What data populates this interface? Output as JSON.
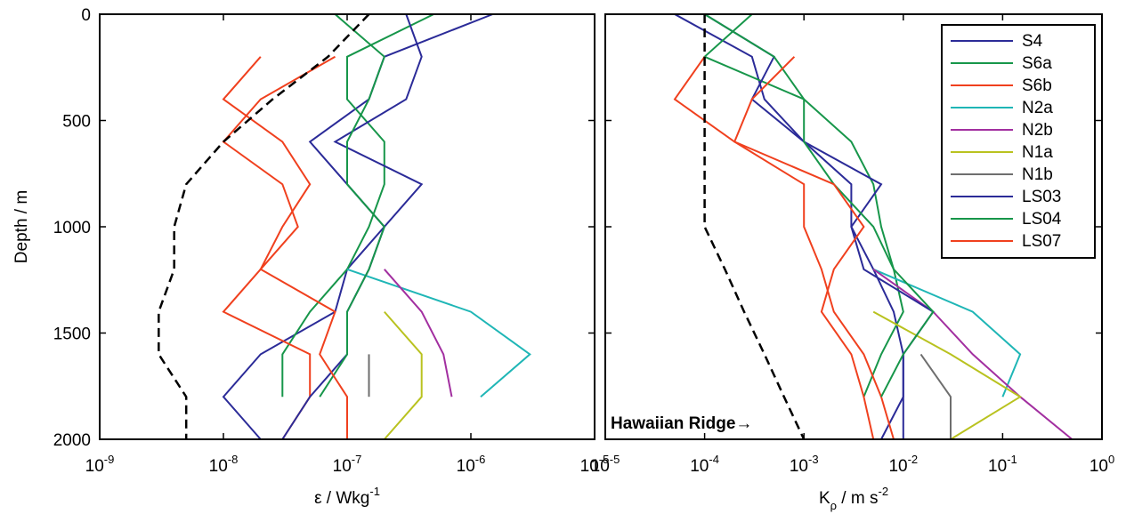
{
  "chart_data": [
    {
      "type": "line",
      "xscale": "log",
      "xlim": [
        1e-09,
        1e-05
      ],
      "ylim": [
        0,
        2000
      ],
      "y_reversed": true,
      "xticks": [
        {
          "value": 1e-09,
          "label": "10",
          "exponent": "-9"
        },
        {
          "value": 1e-08,
          "label": "10",
          "exponent": "-8"
        },
        {
          "value": 1e-07,
          "label": "10",
          "exponent": "-7"
        },
        {
          "value": 1e-06,
          "label": "10",
          "exponent": "-6"
        },
        {
          "value": 1e-05,
          "label": "10",
          "exponent": "-5"
        }
      ],
      "yticks": [
        0,
        500,
        1000,
        1500,
        2000
      ],
      "ylabel": "Depth / m",
      "xlabel": {
        "text": "ε / Wkg",
        "sup": "-1"
      },
      "y": [
        0,
        200,
        400,
        600,
        800,
        1000,
        1200,
        1400,
        1600,
        1800,
        2000
      ],
      "series": [
        {
          "color": "#2b2b98",
          "values": [
            1.5e-06,
            2e-07,
            1.5e-07,
            5e-08,
            1e-07,
            2e-07,
            1e-07,
            8e-08,
            2e-08,
            1e-08,
            2e-08
          ]
        },
        {
          "color": "#17964a",
          "values": [
            5e-07,
            1e-07,
            1e-07,
            2e-07,
            2e-07,
            1.5e-07,
            1e-07,
            5e-08,
            3e-08,
            3e-08,
            null
          ]
        },
        {
          "color": "#f0401e",
          "values": [
            null,
            2e-08,
            1e-08,
            3e-08,
            5e-08,
            3e-08,
            2e-08,
            1e-08,
            5e-08,
            5e-08,
            3e-08
          ]
        },
        {
          "color": "#1fb6b6",
          "values": [
            null,
            null,
            null,
            null,
            null,
            null,
            1e-07,
            1e-06,
            3e-06,
            1.2e-06,
            null
          ]
        },
        {
          "color": "#a22fa0",
          "values": [
            null,
            null,
            null,
            null,
            null,
            null,
            2e-07,
            4e-07,
            6e-07,
            7e-07,
            null
          ]
        },
        {
          "color": "#b9c21f",
          "values": [
            null,
            null,
            null,
            null,
            null,
            null,
            null,
            2e-07,
            4e-07,
            4e-07,
            2e-07
          ]
        },
        {
          "color": "#6e6e6e",
          "values": [
            null,
            null,
            null,
            null,
            null,
            null,
            null,
            null,
            1.5e-07,
            1.5e-07,
            null
          ]
        },
        {
          "color": "#2b2b98",
          "values": [
            3e-07,
            4e-07,
            3e-07,
            8e-08,
            4e-07,
            2e-07,
            1.5e-07,
            1e-07,
            1e-07,
            5e-08,
            3e-08
          ]
        },
        {
          "color": "#17964a",
          "values": [
            8e-08,
            2e-07,
            1.5e-07,
            1e-07,
            1e-07,
            2e-07,
            1.5e-07,
            1e-07,
            1e-07,
            6e-08,
            null
          ]
        },
        {
          "color": "#f0401e",
          "values": [
            null,
            8e-08,
            2e-08,
            1e-08,
            3e-08,
            4e-08,
            2e-08,
            8e-08,
            6e-08,
            1e-07,
            1e-07
          ]
        },
        {
          "color": "#000000",
          "dashed": true,
          "values": [
            1.5e-07,
            7e-08,
            2.5e-08,
            1e-08,
            5e-09,
            4e-09,
            4e-09,
            3e-09,
            3e-09,
            5e-09,
            5e-09
          ]
        }
      ]
    },
    {
      "type": "line",
      "xscale": "log",
      "xlim": [
        1e-05,
        1
      ],
      "ylim": [
        0,
        2000
      ],
      "y_reversed": true,
      "xticks": [
        {
          "value": 1e-05,
          "label": "10",
          "exponent": "-5"
        },
        {
          "value": 0.0001,
          "label": "10",
          "exponent": "-4"
        },
        {
          "value": 0.001,
          "label": "10",
          "exponent": "-3"
        },
        {
          "value": 0.01,
          "label": "10",
          "exponent": "-2"
        },
        {
          "value": 0.1,
          "label": "10",
          "exponent": "-1"
        },
        {
          "value": 1,
          "label": "10",
          "exponent": "0"
        }
      ],
      "yticks": [
        0,
        500,
        1000,
        1500,
        2000
      ],
      "xlabel": {
        "text": "K",
        "sub": "ρ",
        "rest": " / m s",
        "sup": "-2"
      },
      "annotation": "Hawaiian Ridge→",
      "legend": "upper right",
      "y": [
        0,
        200,
        400,
        600,
        800,
        1000,
        1200,
        1400,
        1600,
        1800,
        2000
      ],
      "series": [
        {
          "name": "S4",
          "color": "#2b2b98",
          "values": [
            5e-05,
            0.0003,
            0.0004,
            0.001,
            0.003,
            0.003,
            0.005,
            0.008,
            0.01,
            0.01,
            0.006
          ]
        },
        {
          "name": "S6a",
          "color": "#17964a",
          "values": [
            0.0003,
            0.0001,
            0.001,
            0.003,
            0.005,
            0.006,
            0.008,
            0.01,
            0.006,
            0.004,
            null
          ]
        },
        {
          "name": "S6b",
          "color": "#f0401e",
          "values": [
            null,
            0.0001,
            5e-05,
            0.0002,
            0.001,
            0.001,
            0.0015,
            0.002,
            0.004,
            0.006,
            0.008
          ]
        },
        {
          "name": "N2a",
          "color": "#1fb6b6",
          "values": [
            null,
            null,
            null,
            null,
            null,
            null,
            0.005,
            0.05,
            0.15,
            0.1,
            null
          ]
        },
        {
          "name": "N2b",
          "color": "#a22fa0",
          "values": [
            null,
            null,
            null,
            null,
            null,
            null,
            0.005,
            0.02,
            0.05,
            0.15,
            0.5
          ]
        },
        {
          "name": "N1a",
          "color": "#b9c21f",
          "values": [
            null,
            null,
            null,
            null,
            null,
            null,
            null,
            0.005,
            0.03,
            0.15,
            0.03
          ]
        },
        {
          "name": "N1b",
          "color": "#6e6e6e",
          "values": [
            null,
            null,
            null,
            null,
            null,
            null,
            null,
            null,
            0.015,
            0.03,
            0.03
          ]
        },
        {
          "name": "LS03",
          "color": "#2b2b98",
          "values": [
            0.0001,
            0.0005,
            0.0003,
            0.001,
            0.006,
            0.003,
            0.004,
            0.02,
            0.01,
            0.01,
            0.01
          ]
        },
        {
          "name": "LS04",
          "color": "#17964a",
          "values": [
            0.0001,
            0.0005,
            0.001,
            0.001,
            0.002,
            0.005,
            0.008,
            0.02,
            0.01,
            0.006,
            null
          ]
        },
        {
          "name": "LS07",
          "color": "#f0401e",
          "values": [
            null,
            0.0008,
            0.0003,
            0.0002,
            0.002,
            0.004,
            0.002,
            0.0015,
            0.003,
            0.004,
            0.005
          ]
        },
        {
          "color": "#000000",
          "dashed": true,
          "values": [
            0.0001,
            0.0001,
            0.0001,
            0.0001,
            0.0001,
            0.0001,
            0.00016,
            0.00025,
            0.0004,
            0.00063,
            0.001
          ]
        }
      ]
    }
  ]
}
